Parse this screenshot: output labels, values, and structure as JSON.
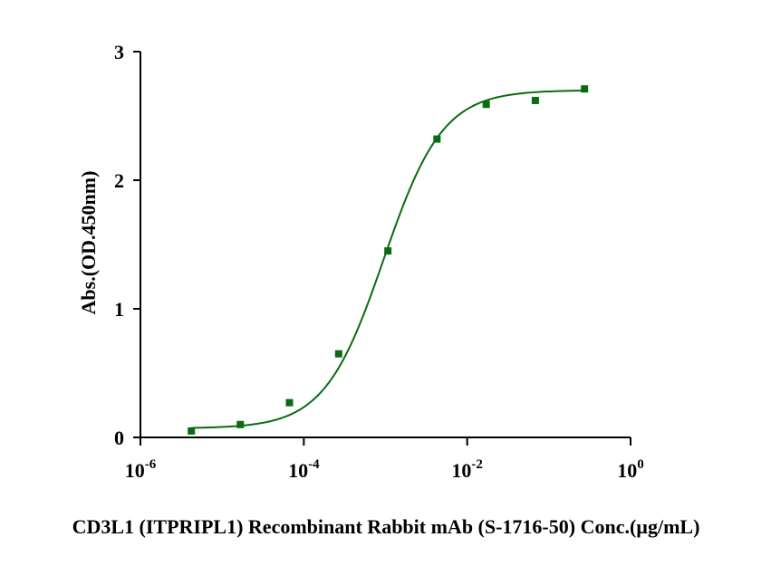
{
  "chart_data": {
    "type": "scatter",
    "title": "",
    "xlabel": "CD3L1 (ITPRIPL1) Recombinant Rabbit mAb (S-1716-50) Conc.(µg/mL)",
    "ylabel": "Abs.(OD.450nm)",
    "x_scale": "log",
    "xlim": [
      1e-06,
      1
    ],
    "ylim": [
      0,
      3
    ],
    "grid": false,
    "legend": "none",
    "x_ticks": [
      {
        "base": "10",
        "exp": "-6"
      },
      {
        "base": "10",
        "exp": "-4"
      },
      {
        "base": "10",
        "exp": "-2"
      },
      {
        "base": "10",
        "exp": "0"
      }
    ],
    "y_ticks": [
      "0",
      "1",
      "2",
      "3"
    ],
    "series": [
      {
        "color": "#0b6b12",
        "marker": "square",
        "fit": "4PL",
        "points": [
          {
            "x": 4.2e-06,
            "y": 0.05
          },
          {
            "x": 1.67e-05,
            "y": 0.1
          },
          {
            "x": 6.67e-05,
            "y": 0.27
          },
          {
            "x": 0.000267,
            "y": 0.65
          },
          {
            "x": 0.00107,
            "y": 1.45
          },
          {
            "x": 0.00427,
            "y": 2.32
          },
          {
            "x": 0.0171,
            "y": 2.59
          },
          {
            "x": 0.0683,
            "y": 2.62
          },
          {
            "x": 0.273,
            "y": 2.71
          }
        ],
        "curve": {
          "bottom": 0.07,
          "top": 2.7,
          "ec50": 0.00095,
          "hill": 1.2
        }
      }
    ]
  }
}
